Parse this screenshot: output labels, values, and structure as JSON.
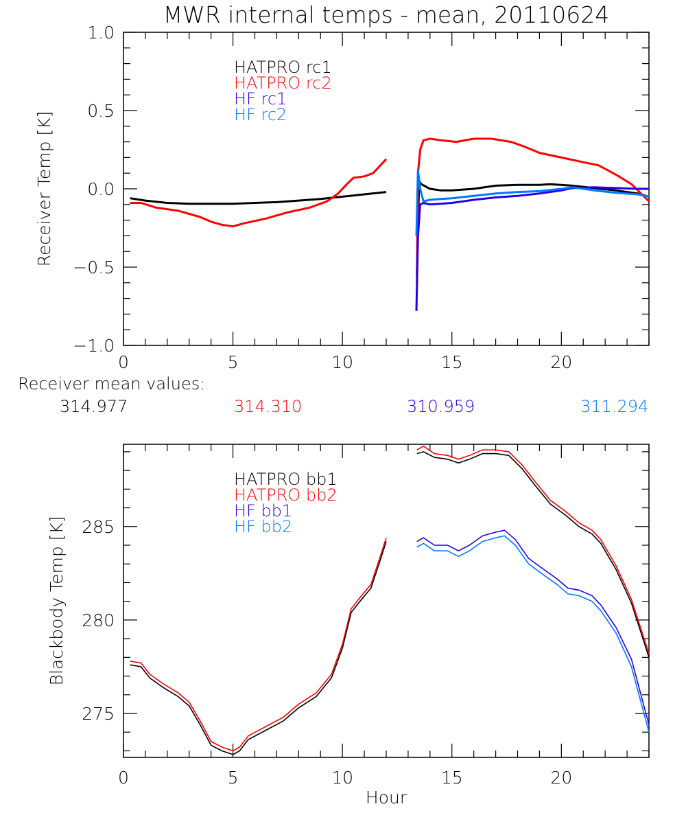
{
  "title": "MWR internal temps - mean, 20110624",
  "receiver_mean": {
    "label": "Receiver mean values:",
    "values": [
      {
        "name": "HATPRO rc1",
        "value": "314.977",
        "color": "#000000"
      },
      {
        "name": "HATPRO rc2",
        "value": "314.310",
        "color": "#ff0000"
      },
      {
        "name": "HF rc1",
        "value": "310.959",
        "color": "#2200ee"
      },
      {
        "name": "HF rc2",
        "value": "311.294",
        "color": "#0077ff"
      }
    ]
  },
  "chart_data": [
    {
      "type": "line",
      "title": "MWR internal temps - mean, 20110624",
      "xlabel": "",
      "ylabel": "Receiver Temp [K]",
      "xlim": [
        0,
        24
      ],
      "ylim": [
        -1.0,
        1.0
      ],
      "xticks": [
        0,
        5,
        10,
        15,
        20
      ],
      "xtick_labels": [
        "0",
        "5",
        "10",
        "15",
        "20"
      ],
      "yticks": [
        -1.0,
        -0.5,
        0.0,
        0.5,
        1.0
      ],
      "ytick_labels": [
        "−1.0",
        "−0.5",
        "0.0",
        "0.5",
        "1.0"
      ],
      "grid": false,
      "legend_position": "top-left",
      "series": [
        {
          "name": "HATPRO rc1",
          "color": "#000000",
          "segments": [
            {
              "x": [
                0.3,
                1.0,
                2.0,
                3.0,
                4.0,
                5.0,
                6.0,
                7.0,
                8.0,
                9.0,
                10.0,
                11.0,
                12.0
              ],
              "y": [
                -0.06,
                -0.075,
                -0.09,
                -0.095,
                -0.095,
                -0.095,
                -0.09,
                -0.085,
                -0.075,
                -0.065,
                -0.05,
                -0.035,
                -0.02
              ]
            },
            {
              "x": [
                13.4,
                13.5,
                13.6,
                14.0,
                14.5,
                15.0,
                16.0,
                17.0,
                18.0,
                19.0,
                19.5,
                20.5,
                21.5,
                22.5,
                23.5,
                24.0
              ],
              "y": [
                -0.55,
                0.05,
                0.03,
                0.0,
                -0.01,
                -0.01,
                0.0,
                0.02,
                0.025,
                0.025,
                0.03,
                0.02,
                0.005,
                -0.01,
                -0.03,
                -0.05
              ]
            }
          ]
        },
        {
          "name": "HATPRO rc2",
          "color": "#ff0000",
          "segments": [
            {
              "x": [
                0.3,
                0.8,
                1.5,
                2.5,
                3.5,
                4.0,
                4.5,
                5.0,
                5.5,
                6.5,
                7.5,
                8.5,
                9.3,
                9.8,
                10.2,
                10.5,
                11.0,
                11.4,
                12.0
              ],
              "y": [
                -0.09,
                -0.09,
                -0.12,
                -0.14,
                -0.18,
                -0.21,
                -0.23,
                -0.24,
                -0.22,
                -0.19,
                -0.15,
                -0.12,
                -0.08,
                -0.03,
                0.03,
                0.07,
                0.08,
                0.1,
                0.19
              ]
            },
            {
              "x": [
                13.4,
                13.45,
                13.55,
                13.7,
                14.0,
                14.5,
                15.2,
                16.0,
                16.8,
                17.7,
                18.3,
                19.0,
                20.0,
                21.0,
                21.7,
                22.5,
                23.2,
                24.0
              ],
              "y": [
                -0.6,
                0.1,
                0.25,
                0.31,
                0.32,
                0.31,
                0.3,
                0.32,
                0.32,
                0.3,
                0.27,
                0.23,
                0.2,
                0.17,
                0.15,
                0.09,
                0.03,
                -0.08
              ]
            }
          ]
        },
        {
          "name": "HF rc1",
          "color": "#2200ee",
          "segments": [
            {
              "x": [
                13.38,
                13.45,
                13.55,
                13.7,
                14.0,
                14.5,
                15.0,
                16.0,
                17.0,
                18.0,
                19.0,
                20.0,
                20.5,
                21.5,
                22.5,
                23.5,
                24.0
              ],
              "y": [
                -0.78,
                -0.3,
                -0.1,
                -0.09,
                -0.1,
                -0.095,
                -0.09,
                -0.07,
                -0.055,
                -0.045,
                -0.03,
                -0.01,
                0.005,
                0.01,
                0.005,
                0.0,
                0.0
              ]
            }
          ]
        },
        {
          "name": "HF rc2",
          "color": "#0077ff",
          "segments": [
            {
              "x": [
                13.38,
                13.45,
                13.55,
                13.7,
                14.0,
                14.5,
                15.0,
                16.0,
                17.0,
                18.0,
                19.0,
                20.0,
                20.5,
                21.5,
                22.5,
                23.5,
                24.0
              ],
              "y": [
                -0.3,
                0.12,
                0.0,
                -0.08,
                -0.07,
                -0.065,
                -0.06,
                -0.045,
                -0.03,
                -0.02,
                -0.015,
                0.0,
                0.01,
                -0.01,
                -0.025,
                -0.035,
                -0.05
              ]
            }
          ]
        }
      ]
    },
    {
      "type": "line",
      "title": "",
      "xlabel": "Hour",
      "ylabel": "Blackbody Temp [K]",
      "xlim": [
        0,
        24
      ],
      "ylim": [
        272.65,
        289.4
      ],
      "xticks": [
        0,
        5,
        10,
        15,
        20
      ],
      "xtick_labels": [
        "0",
        "5",
        "10",
        "15",
        "20"
      ],
      "yticks": [
        275,
        280,
        285
      ],
      "ytick_labels": [
        "275",
        "280",
        "285"
      ],
      "grid": false,
      "legend_position": "top-left",
      "series": [
        {
          "name": "HATPRO bb1",
          "color": "#000000",
          "segments": [
            {
              "x": [
                0.3,
                0.8,
                1.2,
                1.8,
                2.5,
                3.0,
                3.5,
                4.0,
                4.5,
                5.0,
                5.3,
                5.7,
                6.5,
                7.3,
                8.0,
                8.8,
                9.5,
                10.0,
                10.4,
                10.8,
                11.3,
                11.7,
                12.0
              ],
              "y": [
                277.6,
                277.5,
                276.9,
                276.4,
                275.9,
                275.4,
                274.4,
                273.3,
                273.0,
                272.8,
                273.0,
                273.6,
                274.1,
                274.6,
                275.3,
                275.9,
                276.9,
                278.5,
                280.4,
                281.0,
                281.7,
                283.1,
                284.2
              ]
            },
            {
              "x": [
                13.4,
                13.7,
                14.2,
                14.8,
                15.3,
                15.8,
                16.4,
                17.0,
                17.6,
                18.2,
                18.8,
                19.5,
                20.2,
                20.8,
                21.4,
                21.8,
                22.5,
                23.2,
                24.0
              ],
              "y": [
                288.9,
                289.0,
                288.7,
                288.6,
                288.4,
                288.6,
                288.9,
                288.9,
                288.8,
                288.1,
                287.2,
                286.2,
                285.6,
                285.0,
                284.6,
                284.1,
                282.7,
                280.9,
                278.0
              ]
            }
          ]
        },
        {
          "name": "HATPRO bb2",
          "color": "#ff0000",
          "segments": [
            {
              "x": [
                0.3,
                0.8,
                1.2,
                1.8,
                2.5,
                3.0,
                3.5,
                4.0,
                4.5,
                5.0,
                5.3,
                5.7,
                6.5,
                7.3,
                8.0,
                8.8,
                9.5,
                10.0,
                10.4,
                10.8,
                11.3,
                11.7,
                12.0
              ],
              "y": [
                277.8,
                277.7,
                277.1,
                276.6,
                276.1,
                275.6,
                274.6,
                273.5,
                273.2,
                273.0,
                273.2,
                273.8,
                274.3,
                274.8,
                275.5,
                276.1,
                277.1,
                278.7,
                280.6,
                281.2,
                281.9,
                283.3,
                284.4
              ]
            },
            {
              "x": [
                13.4,
                13.7,
                14.2,
                14.8,
                15.3,
                15.8,
                16.4,
                17.0,
                17.6,
                18.2,
                18.8,
                19.5,
                20.2,
                20.8,
                21.4,
                21.8,
                22.5,
                23.2,
                24.0
              ],
              "y": [
                289.1,
                289.3,
                288.9,
                288.8,
                288.6,
                288.8,
                289.1,
                289.1,
                289.0,
                288.3,
                287.4,
                286.4,
                285.8,
                285.2,
                284.8,
                284.3,
                282.9,
                281.1,
                278.2
              ]
            }
          ]
        },
        {
          "name": "HF bb1",
          "color": "#2200ee",
          "segments": [
            {
              "x": [
                13.4,
                13.7,
                14.2,
                14.8,
                15.3,
                15.8,
                16.4,
                17.0,
                17.4,
                17.9,
                18.5,
                19.2,
                19.8,
                20.3,
                20.8,
                21.4,
                21.8,
                22.5,
                23.2,
                24.0
              ],
              "y": [
                284.2,
                284.4,
                284.0,
                284.0,
                283.7,
                284.0,
                284.5,
                284.7,
                284.8,
                284.3,
                283.3,
                282.7,
                282.2,
                281.7,
                281.6,
                281.3,
                280.8,
                279.6,
                277.9,
                274.4
              ]
            }
          ]
        },
        {
          "name": "HF bb2",
          "color": "#0077ff",
          "segments": [
            {
              "x": [
                13.4,
                13.7,
                14.2,
                14.8,
                15.3,
                15.8,
                16.4,
                17.0,
                17.4,
                17.9,
                18.5,
                19.2,
                19.8,
                20.3,
                20.8,
                21.4,
                21.8,
                22.5,
                23.2,
                24.0
              ],
              "y": [
                283.9,
                284.1,
                283.7,
                283.7,
                283.4,
                283.7,
                284.2,
                284.4,
                284.5,
                284.0,
                283.0,
                282.4,
                281.9,
                281.4,
                281.3,
                281.0,
                280.5,
                279.3,
                277.5,
                274.0
              ]
            }
          ]
        }
      ]
    }
  ]
}
